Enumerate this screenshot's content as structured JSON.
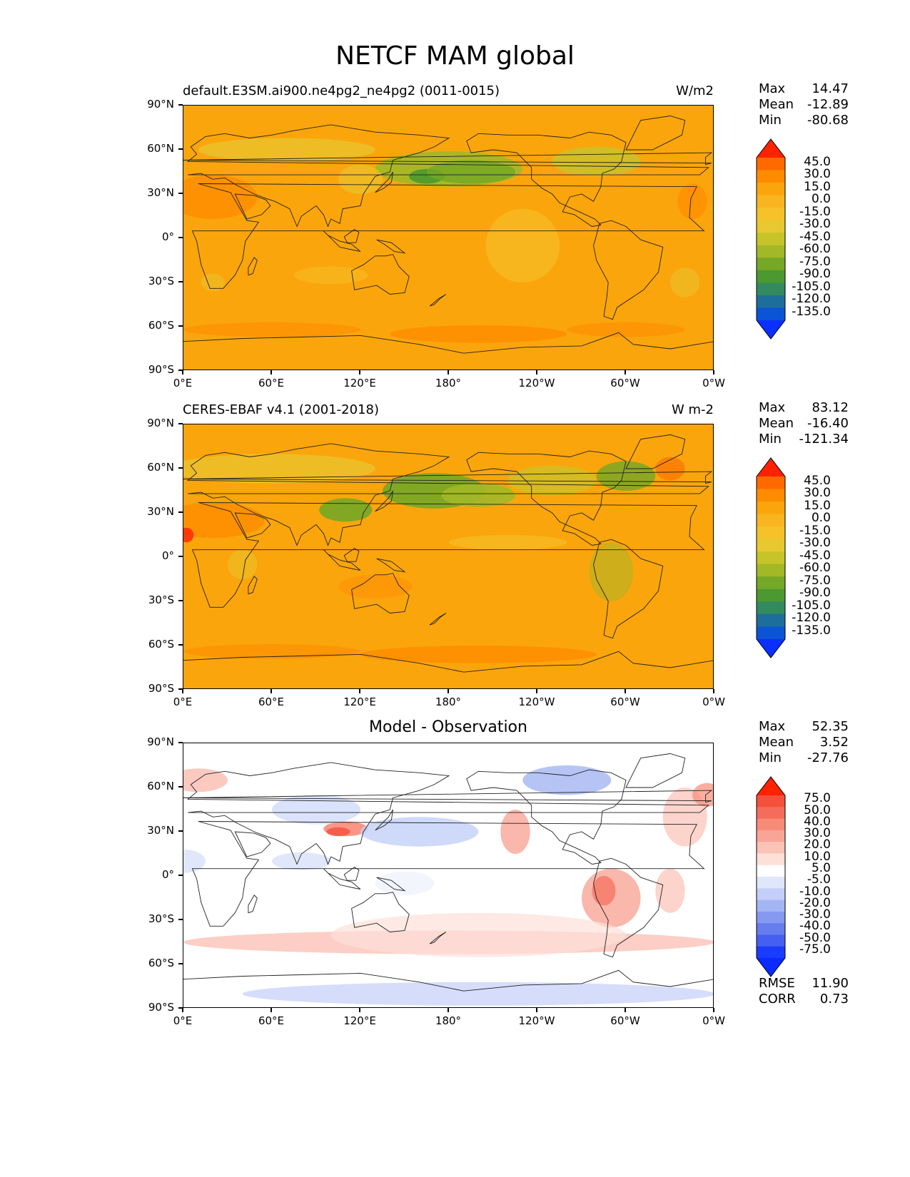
{
  "figure": {
    "title": "NETCF MAM global"
  },
  "lat_labels": [
    "90°N",
    "60°N",
    "30°N",
    "0°",
    "30°S",
    "60°S",
    "90°S"
  ],
  "lon_labels": [
    "0°E",
    "60°E",
    "120°E",
    "180°",
    "120°W",
    "60°W",
    "0°W"
  ],
  "panels": [
    {
      "title_left": "default.E3SM.ai900.ne4pg2_ne4pg2 (0011-0015)",
      "title_right": "W/m2",
      "title_center": "",
      "stats": [
        {
          "label": "Max",
          "value": "14.47"
        },
        {
          "label": "Mean",
          "value": "-12.89"
        },
        {
          "label": "Min",
          "value": "-80.68"
        }
      ],
      "colorbar_levels": [
        "45.0",
        "30.0",
        "15.0",
        "0.0",
        "-15.0",
        "-30.0",
        "-45.0",
        "-60.0",
        "-75.0",
        "-90.0",
        "-105.0",
        "-120.0",
        "-135.0"
      ],
      "colorbar_colors": [
        "#ff2200",
        "#ff6a00",
        "#ff8c00",
        "#fba50c",
        "#f9b520",
        "#f5c22a",
        "#e8c830",
        "#c7c42a",
        "#a2b827",
        "#74a826",
        "#4b9930",
        "#338a5e",
        "#1e6e9c",
        "#0b54d6",
        "#0a30ff"
      ]
    },
    {
      "title_left": "CERES-EBAF v4.1 (2001-2018)",
      "title_right": "W m-2",
      "title_center": "",
      "stats": [
        {
          "label": "Max",
          "value": "83.12"
        },
        {
          "label": "Mean",
          "value": "-16.40"
        },
        {
          "label": "Min",
          "value": "-121.34"
        }
      ],
      "colorbar_levels": [
        "45.0",
        "30.0",
        "15.0",
        "0.0",
        "-15.0",
        "-30.0",
        "-45.0",
        "-60.0",
        "-75.0",
        "-90.0",
        "-105.0",
        "-120.0",
        "-135.0"
      ],
      "colorbar_colors": [
        "#ff2200",
        "#ff6a00",
        "#ff8c00",
        "#fba50c",
        "#f9b520",
        "#f5c22a",
        "#e8c830",
        "#c7c42a",
        "#a2b827",
        "#74a826",
        "#4b9930",
        "#338a5e",
        "#1e6e9c",
        "#0b54d6",
        "#0a30ff"
      ]
    },
    {
      "title_left": "",
      "title_right": "",
      "title_center": "Model - Observation",
      "stats": [
        {
          "label": "Max",
          "value": "52.35"
        },
        {
          "label": "Mean",
          "value": "3.52"
        },
        {
          "label": "Min",
          "value": "-27.76"
        }
      ],
      "colorbar_levels": [
        "75.0",
        "50.0",
        "40.0",
        "30.0",
        "20.0",
        "10.0",
        "5.0",
        "-5.0",
        "-10.0",
        "-20.0",
        "-30.0",
        "-40.0",
        "-50.0",
        "-75.0"
      ],
      "colorbar_colors": [
        "#ff2200",
        "#f4503c",
        "#f56d5a",
        "#f88b78",
        "#f9a596",
        "#fbc2b6",
        "#fde0d8",
        "#ffffff",
        "#e0e6fb",
        "#c3cff8",
        "#a4b5f3",
        "#8699f0",
        "#667ded",
        "#4560f0",
        "#1a3cff",
        "#0a2aff"
      ]
    }
  ],
  "error_stats": [
    {
      "label": "RMSE",
      "value": "11.90"
    },
    {
      "label": "CORR",
      "value": "0.73"
    }
  ]
}
